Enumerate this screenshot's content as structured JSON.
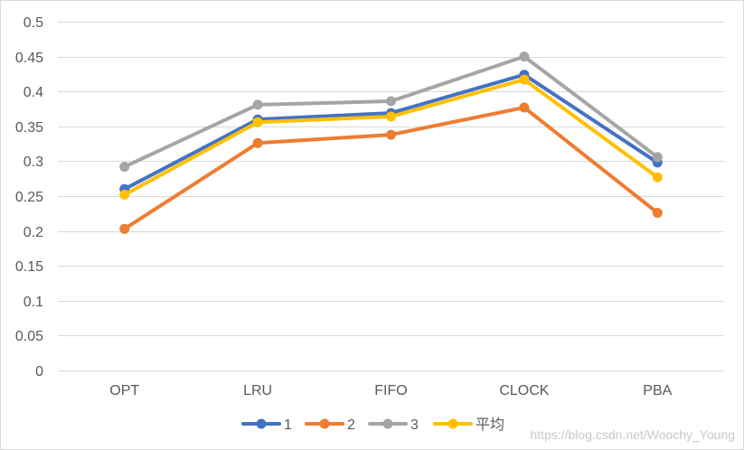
{
  "chart_data": {
    "type": "line",
    "title": "",
    "xlabel": "",
    "ylabel": "",
    "categories": [
      "OPT",
      "LRU",
      "FIFO",
      "CLOCK",
      "PBA"
    ],
    "ylim": [
      0,
      0.5
    ],
    "yticks": [
      "0",
      "0.05",
      "0.1",
      "0.15",
      "0.2",
      "0.25",
      "0.3",
      "0.35",
      "0.4",
      "0.45",
      "0.5"
    ],
    "ytick_values": [
      0,
      0.05,
      0.1,
      0.15,
      0.2,
      0.25,
      0.3,
      0.35,
      0.4,
      0.45,
      0.5
    ],
    "grid": true,
    "legend_position": "bottom",
    "markers": true,
    "series": [
      {
        "name": "1",
        "color": "#4472C4",
        "values": [
          0.26,
          0.36,
          0.369,
          0.424,
          0.298
        ]
      },
      {
        "name": "2",
        "color": "#ED7D31",
        "values": [
          0.203,
          0.326,
          0.338,
          0.377,
          0.226
        ]
      },
      {
        "name": "3",
        "color": "#A5A5A5",
        "values": [
          0.292,
          0.381,
          0.386,
          0.45,
          0.306
        ]
      },
      {
        "name": "平均",
        "color": "#FFC000",
        "values": [
          0.252,
          0.356,
          0.364,
          0.417,
          0.277
        ]
      }
    ]
  },
  "watermark": "https://blog.csdn.net/Woochy_Young"
}
